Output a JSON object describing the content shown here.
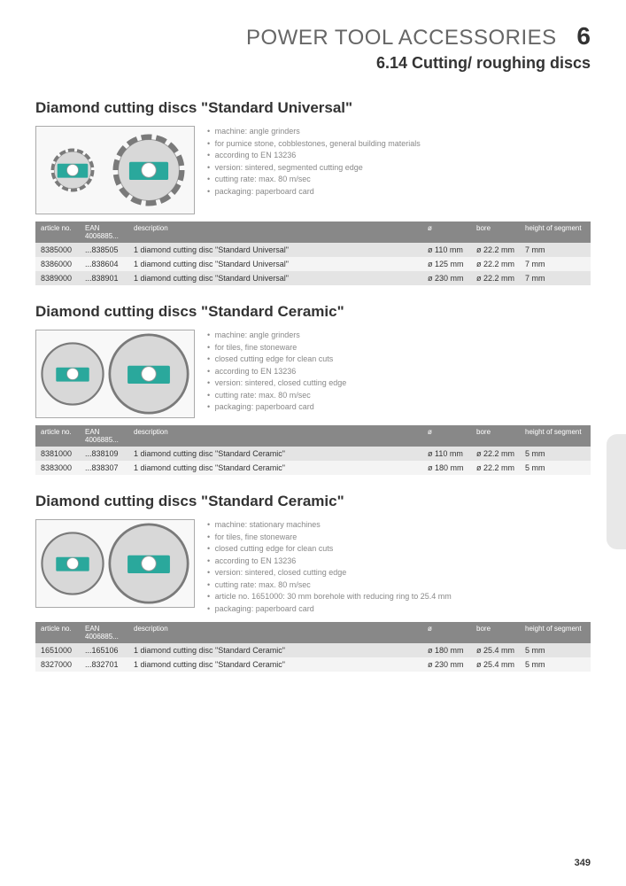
{
  "header": {
    "category": "POWER TOOL ACCESSORIES",
    "chapter_num": "6",
    "chapter_title": "6.14 Cutting/ roughing discs"
  },
  "page_number": "349",
  "tables": {
    "columns": [
      "article no.",
      "EAN\n4006885...",
      "description",
      "ø",
      "bore",
      "height of segment"
    ]
  },
  "sections": [
    {
      "title": "Diamond cutting discs \"Standard Universal\"",
      "image_type": "segmented",
      "bullets": [
        "machine: angle grinders",
        "for pumice stone, cobblestones, general building materials",
        "according to EN 13236",
        "version: sintered, segmented cutting edge",
        "cutting rate: max. 80 m/sec",
        "packaging: paperboard card"
      ],
      "rows": [
        [
          "8385000",
          "...838505",
          "1 diamond cutting disc \"Standard Universal\"",
          "ø 110 mm",
          "ø 22.2 mm",
          "7 mm"
        ],
        [
          "8386000",
          "...838604",
          "1 diamond cutting disc \"Standard Universal\"",
          "ø 125 mm",
          "ø 22.2 mm",
          "7 mm"
        ],
        [
          "8389000",
          "...838901",
          "1 diamond cutting disc \"Standard Universal\"",
          "ø 230 mm",
          "ø 22.2 mm",
          "7 mm"
        ]
      ]
    },
    {
      "title": "Diamond cutting discs \"Standard Ceramic\"",
      "image_type": "closed",
      "bullets": [
        "machine: angle grinders",
        "for tiles, fine stoneware",
        "closed cutting edge for clean cuts",
        "according to EN 13236",
        "version: sintered, closed cutting edge",
        "cutting rate: max. 80 m/sec",
        "packaging: paperboard card"
      ],
      "rows": [
        [
          "8381000",
          "...838109",
          "1 diamond cutting disc \"Standard Ceramic\"",
          "ø 110 mm",
          "ø 22.2 mm",
          "5 mm"
        ],
        [
          "8383000",
          "...838307",
          "1 diamond cutting disc \"Standard Ceramic\"",
          "ø 180 mm",
          "ø 22.2 mm",
          "5 mm"
        ]
      ]
    },
    {
      "title": "Diamond cutting discs \"Standard Ceramic\"",
      "image_type": "closed",
      "bullets": [
        "machine: stationary machines",
        "for tiles, fine stoneware",
        "closed cutting edge for clean cuts",
        "according to EN 13236",
        "version: sintered, closed cutting edge",
        "cutting rate: max. 80 m/sec",
        "article no. 1651000: 30 mm borehole with reducing ring to 25.4 mm",
        "packaging: paperboard card"
      ],
      "rows": [
        [
          "1651000",
          "...165106",
          "1 diamond cutting disc \"Standard Ceramic\"",
          "ø 180 mm",
          "ø 25.4 mm",
          "5 mm"
        ],
        [
          "8327000",
          "...832701",
          "1 diamond cutting disc \"Standard Ceramic\"",
          "ø 230 mm",
          "ø 25.4 mm",
          "5 mm"
        ]
      ]
    }
  ],
  "colors": {
    "header_gray": "#888888",
    "row_odd": "#e4e4e4",
    "row_even": "#f4f4f4",
    "text": "#333333",
    "muted": "#888888",
    "disc_teal": "#2aa89c",
    "disc_silver": "#d8d8d8",
    "disc_edge": "#7a7a7a"
  }
}
